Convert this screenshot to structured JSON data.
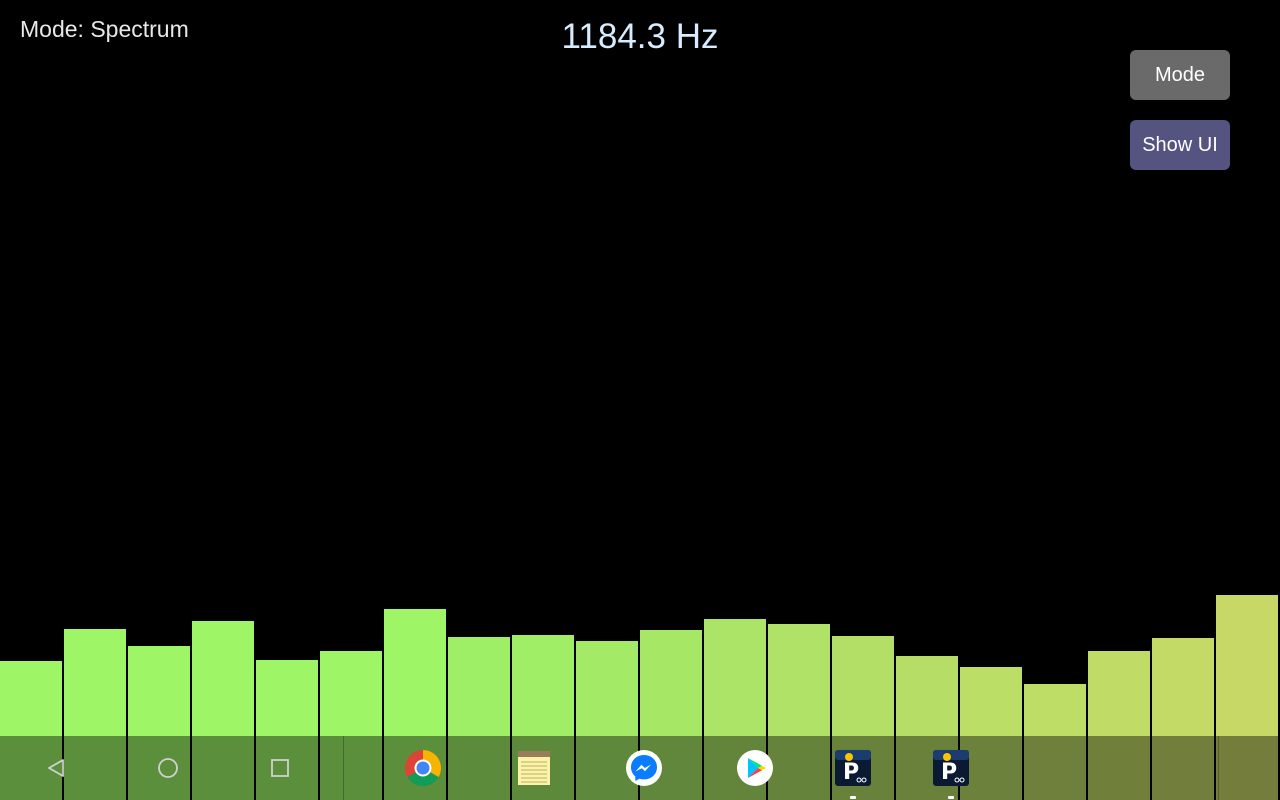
{
  "status": {
    "mode_text": "Mode: Spectrum",
    "frequency_text": "1184.3 Hz"
  },
  "controls": {
    "mode_button_label": "Mode",
    "show_ui_button_label": "Show UI"
  },
  "chart_data": {
    "type": "bar",
    "title": "",
    "xlabel": "",
    "ylabel": "",
    "ylim": [
      0,
      800
    ],
    "values": [
      139,
      171,
      154,
      179,
      140,
      149,
      191,
      163,
      165,
      159,
      170,
      181,
      176,
      164,
      144,
      133,
      116,
      149,
      162,
      205
    ],
    "colors": [
      "#9ef666",
      "#9ef666",
      "#9ef666",
      "#9ef666",
      "#9ef666",
      "#9ef666",
      "#9ef666",
      "#9fef66",
      "#a0ed66",
      "#a3ea66",
      "#a6e866",
      "#abe466",
      "#afe266",
      "#b3df66",
      "#b6de66",
      "#bade66",
      "#bedd66",
      "#c1dc66",
      "#c4da66",
      "#c8d866"
    ]
  },
  "navbar": {
    "buttons": [
      {
        "name": "back-button",
        "icon": "back-triangle-icon"
      },
      {
        "name": "home-button",
        "icon": "home-circle-icon"
      },
      {
        "name": "recents-button",
        "icon": "recents-square-icon"
      }
    ],
    "apps": [
      {
        "name": "chrome-app-icon",
        "icon": "chrome-icon"
      },
      {
        "name": "notepad-app-icon",
        "icon": "notepad-icon"
      },
      {
        "name": "messenger-app-icon",
        "icon": "messenger-icon"
      },
      {
        "name": "play-store-app-icon",
        "icon": "play-store-icon"
      },
      {
        "name": "parking-app-icon-1",
        "icon": "parking-icon"
      },
      {
        "name": "parking-app-icon-2",
        "icon": "parking-icon"
      }
    ],
    "color": "#000000"
  }
}
